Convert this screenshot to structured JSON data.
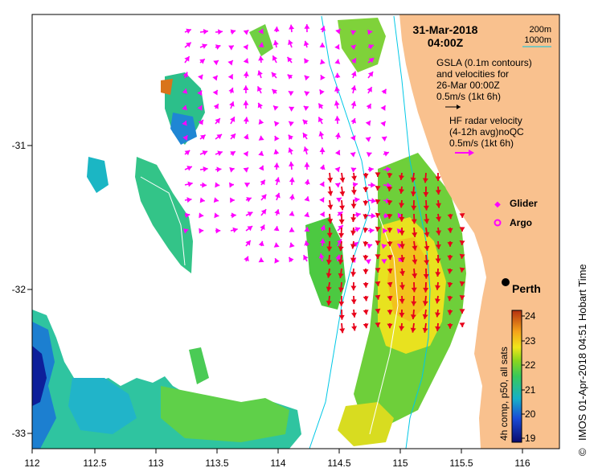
{
  "title": {
    "date": "31-Mar-2018",
    "time": "04:00Z"
  },
  "isobath_legend": {
    "depth_200": "200m",
    "depth_1000": "1000m"
  },
  "gsla_legend": {
    "line1": "GSLA (0.1m contours)",
    "line2": "and velocities for",
    "line3": "26-Mar 00:00Z",
    "scale": "0.5m/s (1kt 6h)"
  },
  "hf_legend": {
    "line1": "HF radar velocity",
    "line2": "(4-12h avg)noQC",
    "scale": "0.5m/s (1kt 6h)"
  },
  "platform_legend": {
    "glider": "Glider",
    "argo": "Argo"
  },
  "city": {
    "name": "Perth",
    "lon": 115.86,
    "lat": -31.95
  },
  "x_axis": {
    "ticks": [
      "112",
      "112.5",
      "113",
      "113.5",
      "114",
      "114.5",
      "115",
      "115.5",
      "116"
    ],
    "range": [
      112,
      116.3
    ]
  },
  "y_axis": {
    "ticks": [
      "-31",
      "-32",
      "-33"
    ],
    "range": [
      -33.1,
      -30.1
    ]
  },
  "colorbar": {
    "label": "4h comp, p50, all sats",
    "ticks": [
      "19",
      "20",
      "21",
      "22",
      "23",
      "24"
    ],
    "range": [
      18.8,
      24.2
    ]
  },
  "credit": "IMOS 01-Apr-2018 04:51 Hobart Time",
  "credit_symbol": "©",
  "colors": {
    "land": "#f9c18e",
    "gsla_arrow": "#ff00ff",
    "hf_arrow": "#e8001a",
    "isobath_200": "#00c8e6",
    "isobath_1000": "#00c8e6",
    "gsla_contour": "#ffffff"
  }
}
